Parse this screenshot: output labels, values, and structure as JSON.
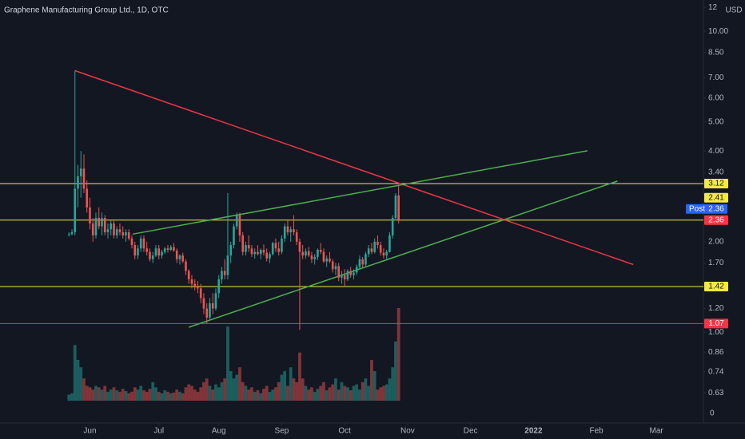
{
  "chart_data": {
    "type": "candlestick",
    "title": "Graphene Manufacturing Group Ltd., 1D, OTC",
    "currency": "USD",
    "log_scale": true,
    "up_color": "#26a69a",
    "down_color": "#ef5350",
    "ylim": [
      0.5,
      12.7
    ],
    "yticks": [
      12,
      {
        "value": 10,
        "label": "10.00"
      },
      {
        "value": 8.5,
        "label": "8.50"
      },
      {
        "value": 7,
        "label": "7.00"
      },
      {
        "value": 6,
        "label": "6.00"
      },
      {
        "value": 5,
        "label": "5.00"
      },
      {
        "value": 4,
        "label": "4.00"
      },
      {
        "value": 3.4,
        "label": "3.40"
      },
      {
        "value": 2,
        "label": "2.00"
      },
      {
        "value": 1.7,
        "label": "1.70"
      },
      {
        "value": 1.2,
        "label": "1.20"
      },
      {
        "value": 1,
        "label": "1.00"
      },
      0.86,
      0.74,
      0.63
    ],
    "xlim": [
      -23,
      211.7
    ],
    "xticks": [
      {
        "value": 7,
        "label": "Jun"
      },
      {
        "value": 30,
        "label": "Jul"
      },
      {
        "value": 50,
        "label": "Aug"
      },
      {
        "value": 71,
        "label": "Sep"
      },
      {
        "value": 92,
        "label": "Oct"
      },
      {
        "value": 113,
        "label": "Nov"
      },
      {
        "value": 134,
        "label": "Dec"
      },
      {
        "value": 155,
        "label": "2022"
      },
      {
        "value": 176,
        "label": "Feb"
      },
      {
        "value": 196,
        "label": "Mar"
      }
    ],
    "candles": [
      [
        2.12,
        2.15,
        2.08,
        2.12
      ],
      [
        2.12,
        2.2,
        2.1,
        2.15
      ],
      [
        2.15,
        7.4,
        2.1,
        3.0
      ],
      [
        3.0,
        3.6,
        2.6,
        3.3
      ],
      [
        3.3,
        4.0,
        2.8,
        3.5
      ],
      [
        3.5,
        3.9,
        2.9,
        3.0
      ],
      [
        3.0,
        3.2,
        2.5,
        2.6
      ],
      [
        2.6,
        2.8,
        2.2,
        2.3
      ],
      [
        2.3,
        2.4,
        2.0,
        2.1
      ],
      [
        2.1,
        2.5,
        2.05,
        2.4
      ],
      [
        2.4,
        2.6,
        2.2,
        2.25
      ],
      [
        2.25,
        2.5,
        2.1,
        2.4
      ],
      [
        2.4,
        2.45,
        2.1,
        2.15
      ],
      [
        2.15,
        2.3,
        2.05,
        2.2
      ],
      [
        2.2,
        2.35,
        2.1,
        2.3
      ],
      [
        2.3,
        2.35,
        2.05,
        2.1
      ],
      [
        2.1,
        2.25,
        2.05,
        2.2
      ],
      [
        2.2,
        2.3,
        2.1,
        2.15
      ],
      [
        2.15,
        2.25,
        2.05,
        2.1
      ],
      [
        2.1,
        2.2,
        2.0,
        2.15
      ],
      [
        2.15,
        2.2,
        2.02,
        2.05
      ],
      [
        2.05,
        2.1,
        1.9,
        1.95
      ],
      [
        1.95,
        2.0,
        1.75,
        1.8
      ],
      [
        1.8,
        1.95,
        1.75,
        1.9
      ],
      [
        1.9,
        2.1,
        1.85,
        2.05
      ],
      [
        2.05,
        2.1,
        1.85,
        1.9
      ],
      [
        1.9,
        2.0,
        1.8,
        1.85
      ],
      [
        1.85,
        1.9,
        1.72,
        1.75
      ],
      [
        1.75,
        1.85,
        1.7,
        1.8
      ],
      [
        1.8,
        1.95,
        1.78,
        1.9
      ],
      [
        1.9,
        1.95,
        1.75,
        1.8
      ],
      [
        1.8,
        1.88,
        1.76,
        1.85
      ],
      [
        1.85,
        1.92,
        1.82,
        1.9
      ],
      [
        1.9,
        1.95,
        1.84,
        1.88
      ],
      [
        1.88,
        1.95,
        1.86,
        1.92
      ],
      [
        1.92,
        1.98,
        1.85,
        1.87
      ],
      [
        1.87,
        1.9,
        1.7,
        1.75
      ],
      [
        1.75,
        1.82,
        1.68,
        1.8
      ],
      [
        1.8,
        1.84,
        1.7,
        1.72
      ],
      [
        1.72,
        1.75,
        1.55,
        1.6
      ],
      [
        1.6,
        1.62,
        1.45,
        1.5
      ],
      [
        1.5,
        1.55,
        1.4,
        1.45
      ],
      [
        1.45,
        1.5,
        1.38,
        1.42
      ],
      [
        1.42,
        1.48,
        1.35,
        1.4
      ],
      [
        1.4,
        1.45,
        1.25,
        1.3
      ],
      [
        1.3,
        1.35,
        1.15,
        1.2
      ],
      [
        1.2,
        1.25,
        1.07,
        1.12
      ],
      [
        1.12,
        1.3,
        1.1,
        1.25
      ],
      [
        1.25,
        1.35,
        1.15,
        1.2
      ],
      [
        1.2,
        1.4,
        1.18,
        1.35
      ],
      [
        1.35,
        1.55,
        1.3,
        1.5
      ],
      [
        1.5,
        1.65,
        1.45,
        1.6
      ],
      [
        1.6,
        1.75,
        1.5,
        1.55
      ],
      [
        1.55,
        2.9,
        1.5,
        1.8
      ],
      [
        1.8,
        2.0,
        1.7,
        1.95
      ],
      [
        1.95,
        2.3,
        1.9,
        2.25
      ],
      [
        2.25,
        2.5,
        2.2,
        2.45
      ],
      [
        2.45,
        2.5,
        2.0,
        2.1
      ],
      [
        2.1,
        2.15,
        1.8,
        1.85
      ],
      [
        1.85,
        2.0,
        1.8,
        1.95
      ],
      [
        1.95,
        2.1,
        1.85,
        1.9
      ],
      [
        1.9,
        1.95,
        1.78,
        1.82
      ],
      [
        1.82,
        1.9,
        1.76,
        1.85
      ],
      [
        1.85,
        1.95,
        1.8,
        1.82
      ],
      [
        1.82,
        1.9,
        1.75,
        1.88
      ],
      [
        1.88,
        1.96,
        1.8,
        1.84
      ],
      [
        1.84,
        1.9,
        1.72,
        1.76
      ],
      [
        1.76,
        1.85,
        1.7,
        1.82
      ],
      [
        1.82,
        2.0,
        1.8,
        1.98
      ],
      [
        1.98,
        2.05,
        1.85,
        1.9
      ],
      [
        1.9,
        2.0,
        1.8,
        1.85
      ],
      [
        1.85,
        2.1,
        1.82,
        2.05
      ],
      [
        2.05,
        2.3,
        2.0,
        2.25
      ],
      [
        2.25,
        2.35,
        2.1,
        2.15
      ],
      [
        2.15,
        2.25,
        2.0,
        2.2
      ],
      [
        2.2,
        2.45,
        2.1,
        2.15
      ],
      [
        2.15,
        2.2,
        1.95,
        2.0
      ],
      [
        2.0,
        2.05,
        1.02,
        1.85
      ],
      [
        1.85,
        1.95,
        1.75,
        1.8
      ],
      [
        1.8,
        1.9,
        1.76,
        1.86
      ],
      [
        1.86,
        1.92,
        1.78,
        1.8
      ],
      [
        1.8,
        1.85,
        1.7,
        1.75
      ],
      [
        1.75,
        1.82,
        1.68,
        1.78
      ],
      [
        1.78,
        1.9,
        1.74,
        1.88
      ],
      [
        1.88,
        1.98,
        1.82,
        1.85
      ],
      [
        1.85,
        1.9,
        1.7,
        1.72
      ],
      [
        1.72,
        1.8,
        1.65,
        1.76
      ],
      [
        1.76,
        1.85,
        1.7,
        1.72
      ],
      [
        1.72,
        1.75,
        1.58,
        1.62
      ],
      [
        1.62,
        1.7,
        1.55,
        1.66
      ],
      [
        1.66,
        1.7,
        1.48,
        1.52
      ],
      [
        1.52,
        1.6,
        1.45,
        1.55
      ],
      [
        1.55,
        1.62,
        1.42,
        1.5
      ],
      [
        1.5,
        1.62,
        1.48,
        1.6
      ],
      [
        1.6,
        1.65,
        1.52,
        1.55
      ],
      [
        1.55,
        1.62,
        1.5,
        1.58
      ],
      [
        1.58,
        1.68,
        1.55,
        1.65
      ],
      [
        1.65,
        1.8,
        1.62,
        1.75
      ],
      [
        1.75,
        1.78,
        1.64,
        1.68
      ],
      [
        1.68,
        1.85,
        1.66,
        1.82
      ],
      [
        1.82,
        1.95,
        1.78,
        1.9
      ],
      [
        1.9,
        1.98,
        1.82,
        1.85
      ],
      [
        1.85,
        2.05,
        1.83,
        2.0
      ],
      [
        2.0,
        2.1,
        1.9,
        1.95
      ],
      [
        1.95,
        2.0,
        1.8,
        1.84
      ],
      [
        1.84,
        1.9,
        1.76,
        1.8
      ],
      [
        1.8,
        1.88,
        1.74,
        1.85
      ],
      [
        1.85,
        2.15,
        1.84,
        2.1
      ],
      [
        2.1,
        2.45,
        2.05,
        2.4
      ],
      [
        2.4,
        2.9,
        2.35,
        2.85
      ],
      [
        2.85,
        3.1,
        2.3,
        2.36
      ]
    ],
    "volume": [
      8,
      10,
      75,
      55,
      45,
      30,
      20,
      18,
      15,
      20,
      18,
      15,
      20,
      12,
      15,
      18,
      14,
      12,
      16,
      13,
      10,
      12,
      18,
      15,
      20,
      14,
      12,
      16,
      25,
      18,
      12,
      10,
      14,
      12,
      10,
      11,
      15,
      12,
      10,
      18,
      22,
      20,
      15,
      12,
      18,
      25,
      30,
      20,
      15,
      22,
      18,
      25,
      30,
      100,
      40,
      30,
      35,
      45,
      25,
      20,
      15,
      18,
      12,
      14,
      10,
      16,
      20,
      12,
      15,
      18,
      25,
      35,
      40,
      20,
      45,
      30,
      25,
      65,
      30,
      20,
      15,
      18,
      12,
      16,
      20,
      25,
      14,
      18,
      22,
      30,
      15,
      25,
      20,
      18,
      14,
      20,
      22,
      15,
      25,
      30,
      20,
      55,
      40,
      15,
      18,
      20,
      22,
      30,
      45,
      80,
      125
    ],
    "volume_ylim": [
      0,
      140
    ],
    "volume_ticks": [
      0
    ],
    "hlines": [
      {
        "value": 3.12,
        "color": "#f5e942",
        "labeled": true
      },
      {
        "value": 2.36,
        "color": "#f5e942",
        "labeled": false
      },
      {
        "value": 1.42,
        "color": "#f5e942",
        "labeled": true
      },
      {
        "value": 1.07,
        "color": "#f23645",
        "labeled": true
      }
    ],
    "tags": [
      {
        "value": 2.41,
        "color": "#f5e942"
      },
      {
        "label": "Post",
        "value": 2.36,
        "color": "#2962ff"
      },
      {
        "value": 2.36,
        "color": "#f23645"
      }
    ],
    "trendlines": [
      {
        "color": "#f23645",
        "points": [
          [
            2,
            7.4
          ],
          [
            188.3,
            1.68
          ]
        ]
      },
      {
        "color": "#4caf50",
        "points": [
          [
            21.3,
            2.12
          ],
          [
            173,
            4.01
          ]
        ]
      },
      {
        "color": "#4caf50",
        "points": [
          [
            40,
            1.04
          ],
          [
            183,
            3.18
          ]
        ]
      }
    ]
  }
}
